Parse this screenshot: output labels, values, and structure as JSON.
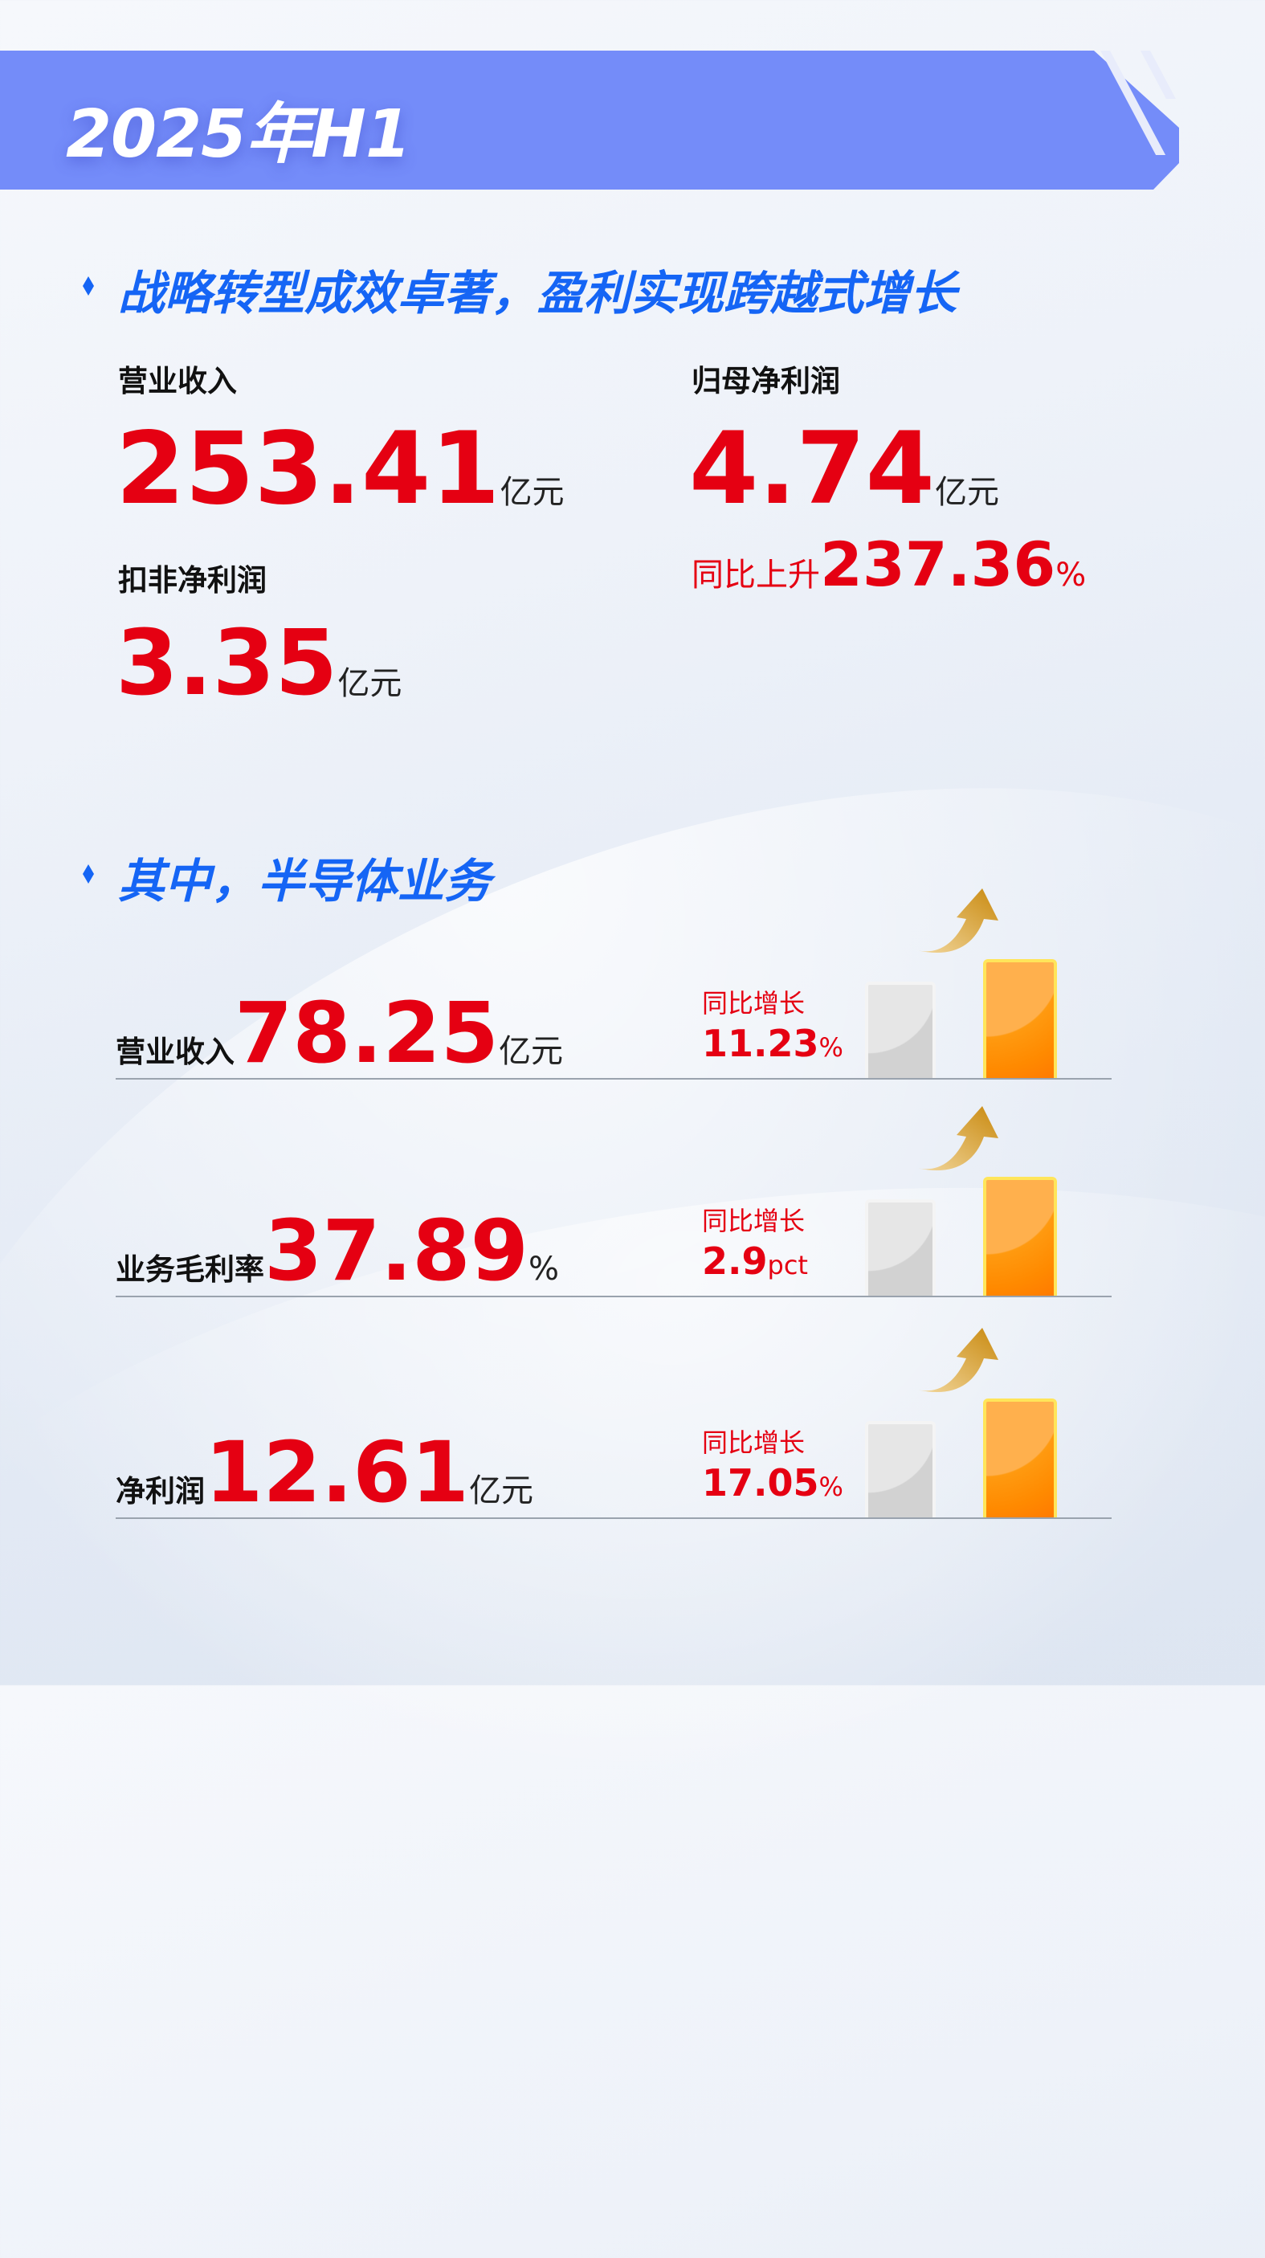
{
  "banner": {
    "title": "2025年H1"
  },
  "section1": {
    "heading": "战略转型成效卓著，盈利实现跨越式增长",
    "revenue": {
      "label": "营业收入",
      "value": "253.41",
      "unit": "亿元"
    },
    "net_profit": {
      "label": "归母净利润",
      "value": "4.74",
      "unit": "亿元",
      "yoy_label": "同比上升",
      "yoy_value": "237.36",
      "yoy_unit": "%"
    },
    "deducted_profit": {
      "label": "扣非净利润",
      "value": "3.35",
      "unit": "亿元"
    }
  },
  "section2": {
    "heading": "其中，半导体业务",
    "rows": [
      {
        "label": "营业收入",
        "value": "78.25",
        "unit": "亿元",
        "yoy_label": "同比增长",
        "yoy_value": "11.23",
        "yoy_unit": "%"
      },
      {
        "label": "业务毛利率",
        "value": "37.89",
        "unit": "%",
        "yoy_label": "同比增长",
        "yoy_value": "2.9",
        "yoy_unit": "pct"
      },
      {
        "label": "净利润",
        "value": "12.61",
        "unit": "亿元",
        "yoy_label": "同比增长",
        "yoy_value": "17.05",
        "yoy_unit": "%"
      }
    ]
  },
  "colors": {
    "banner": "#748cf9",
    "heading": "#1565f5",
    "highlight": "#e50012",
    "bar_current": "#ff8a00",
    "bar_previous": "#dcdcdc"
  }
}
